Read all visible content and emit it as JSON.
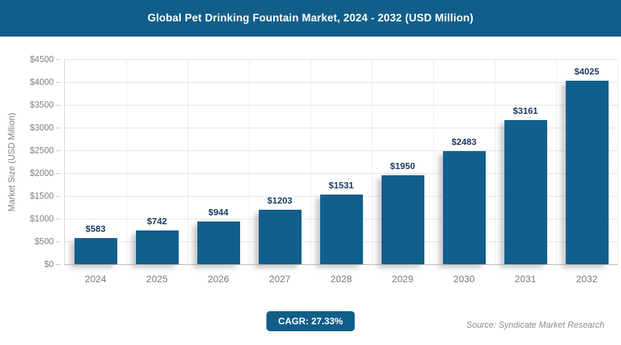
{
  "header": {
    "title": "Global Pet Drinking Fountain Market, 2024 - 2032 (USD Million)"
  },
  "chart_data": {
    "type": "bar",
    "title": "Global Pet Drinking Fountain Market, 2024 - 2032 (USD Million)",
    "categories": [
      "2024",
      "2025",
      "2026",
      "2027",
      "2028",
      "2029",
      "2030",
      "2031",
      "2032"
    ],
    "values": [
      583,
      742,
      944,
      1203,
      1531,
      1950,
      2483,
      3161,
      4025
    ],
    "value_labels": [
      "$583",
      "$742",
      "$944",
      "$1203",
      "$1531",
      "$1950",
      "$2483",
      "$3161",
      "$4025"
    ],
    "xlabel": "",
    "ylabel": "Market Size (USD Million)",
    "ylim": [
      0,
      4500
    ],
    "ytick_step": 500,
    "ytick_labels": [
      "$0",
      "$500",
      "$1000",
      "$1500",
      "$2000",
      "$2500",
      "$3000",
      "$3500",
      "$4000",
      "$4500"
    ],
    "grid": true,
    "legend": "none"
  },
  "footer": {
    "cagr_label": "CAGR: 27.33%",
    "source": "Source: Syndicate Market Research"
  },
  "colors": {
    "header_bg": "#125e8a",
    "bar_fill": "#115f8d",
    "badge_bg": "#125e8a",
    "value_label": "#1f3a63",
    "axis_text": "#7f7f7f"
  }
}
